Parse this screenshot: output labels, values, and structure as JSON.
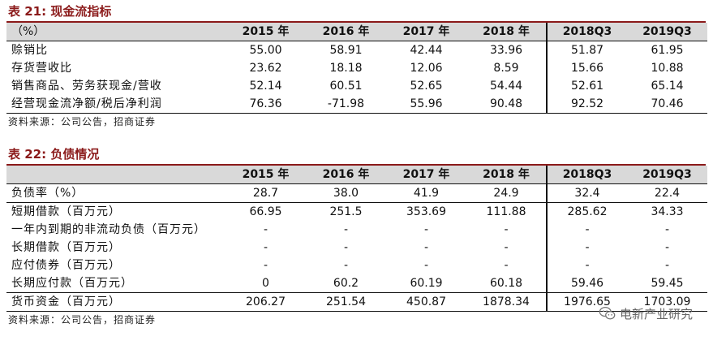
{
  "table21": {
    "title": "表 21: 现金流指标",
    "header": [
      "（%）",
      "2015 年",
      "2016 年",
      "2017 年",
      "2018 年",
      "2018Q3",
      "2019Q3"
    ],
    "rows": [
      [
        "赊销比",
        "55.00",
        "58.91",
        "42.44",
        "33.96",
        "51.87",
        "61.95"
      ],
      [
        "存货营收比",
        "23.62",
        "18.18",
        "12.06",
        "8.59",
        "15.66",
        "10.88"
      ],
      [
        "销售商品、劳务获现金/营收",
        "52.14",
        "60.51",
        "52.65",
        "54.44",
        "52.61",
        "65.14"
      ],
      [
        "经营现金流净额/税后净利润",
        "76.36",
        "-71.98",
        "55.96",
        "90.48",
        "92.52",
        "70.46"
      ]
    ],
    "source": "资料来源：公司公告，招商证券"
  },
  "table22": {
    "title": "表 22: 负债情况",
    "header": [
      "",
      "2015 年",
      "2016 年",
      "2017 年",
      "2018 年",
      "2018Q3",
      "2019Q3"
    ],
    "rows": [
      [
        "负债率（%）",
        "28.7",
        "38.0",
        "41.9",
        "24.9",
        "32.4",
        "22.4"
      ],
      [
        "短期借款（百万元）",
        "66.95",
        "251.5",
        "353.69",
        "111.88",
        "285.62",
        "34.33"
      ],
      [
        "一年内到期的非流动负债（百万元）",
        "-",
        "-",
        "-",
        "-",
        "-",
        "-"
      ],
      [
        "长期借款（百万元）",
        "-",
        "-",
        "-",
        "-",
        "-",
        "-"
      ],
      [
        "应付债券（百万元）",
        "-",
        "-",
        "-",
        "-",
        "-",
        "-"
      ],
      [
        "长期应付款（百万元）",
        "0",
        "60.2",
        "60.19",
        "60.18",
        "59.46",
        "59.45"
      ],
      [
        "货币资金（百万元）",
        "206.27",
        "251.54",
        "450.87",
        "1878.34",
        "1976.65",
        "1703.09"
      ]
    ],
    "source": "资料来源：公司公告，招商证券"
  },
  "watermark": {
    "text": "电新产业研究",
    "icon": "wechat-icon"
  }
}
